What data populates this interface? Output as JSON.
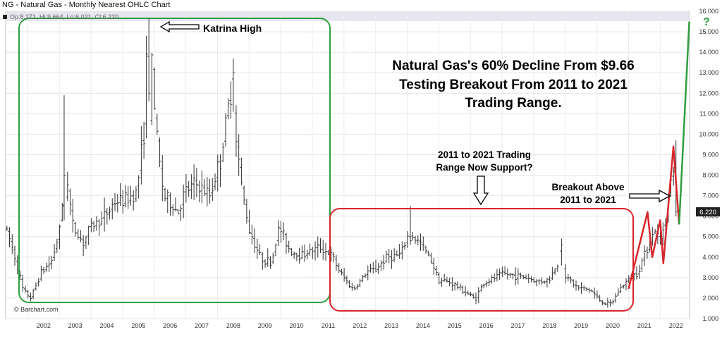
{
  "header": {
    "title": "NG - Natural Gas - Monthly Nearest OHLC Chart",
    "ohlc_readout": "Op:8.271, Hi:9.664, Lo:6.021, Cl:6.220",
    "credit": "© Barchart.com"
  },
  "colors": {
    "bars": "#333333",
    "green_box": "#2e9e3e",
    "red_box": "#d8252b",
    "red_line": "#d8252b",
    "green_line": "#2e9e3e",
    "last_price_bg": "#222222"
  },
  "chart_data": {
    "type": "ohlc",
    "title": "Natural Gas's 60% Decline From $9.66 Testing Breakout From 2011 to 2021 Trading Range.",
    "title_lines": [
      "Natural Gas's 60% Decline From $9.66",
      "Testing Breakout From 2011 to 2021",
      "Trading Range."
    ],
    "x_ticks": [
      "2002",
      "2003",
      "2004",
      "2005",
      "2006",
      "2007",
      "2008",
      "2009",
      "2010",
      "2011",
      "2012",
      "2013",
      "2014",
      "2015",
      "2016",
      "2017",
      "2018",
      "2019",
      "2020",
      "2021",
      "2022"
    ],
    "y_ticks": [
      "1.000",
      "2.000",
      "3.000",
      "4.000",
      "5.000",
      "6.000",
      "7.000",
      "8.000",
      "9.000",
      "10.000",
      "11.000",
      "12.000",
      "13.000",
      "14.000",
      "15.000",
      "16.000"
    ],
    "ylim": [
      1,
      16
    ],
    "xlim": [
      2001.3,
      2022.93
    ],
    "last_price": "6.220",
    "grid": true,
    "annotations": [
      {
        "id": "katrina",
        "text": "Katrina High"
      },
      {
        "id": "support",
        "lines": [
          "2011 to 2021 Trading",
          "Range Now Support?"
        ]
      },
      {
        "id": "breakout",
        "lines": [
          "Breakout Above",
          "2011 to 2021"
        ]
      },
      {
        "id": "question",
        "text": "?"
      }
    ],
    "anchors": [
      [
        2001.3,
        5.5
      ],
      [
        2001.6,
        4.0
      ],
      [
        2001.85,
        2.4
      ],
      [
        2002.1,
        2.0
      ],
      [
        2002.4,
        3.2
      ],
      [
        2002.75,
        3.8
      ],
      [
        2003.05,
        5.5
      ],
      [
        2003.18,
        9.0
      ],
      [
        2003.4,
        5.6
      ],
      [
        2003.75,
        4.7
      ],
      [
        2004.0,
        5.5
      ],
      [
        2004.4,
        5.9
      ],
      [
        2004.75,
        6.7
      ],
      [
        2005.1,
        6.8
      ],
      [
        2005.45,
        7.2
      ],
      [
        2005.7,
        10.5
      ],
      [
        2005.9,
        13.8
      ],
      [
        2006.1,
        9.5
      ],
      [
        2006.3,
        7.0
      ],
      [
        2006.75,
        6.2
      ],
      [
        2006.95,
        7.1
      ],
      [
        2007.3,
        7.6
      ],
      [
        2007.75,
        7.0
      ],
      [
        2008.1,
        8.8
      ],
      [
        2008.45,
        12.3
      ],
      [
        2008.75,
        7.5
      ],
      [
        2009.0,
        5.4
      ],
      [
        2009.35,
        4.0
      ],
      [
        2009.7,
        3.7
      ],
      [
        2009.95,
        5.5
      ],
      [
        2010.3,
        4.3
      ],
      [
        2010.6,
        4.1
      ],
      [
        2010.95,
        4.3
      ],
      [
        2011.25,
        4.5
      ],
      [
        2011.6,
        4.1
      ],
      [
        2011.9,
        3.2
      ],
      [
        2012.3,
        2.4
      ],
      [
        2012.75,
        3.3
      ],
      [
        2013.0,
        3.4
      ],
      [
        2013.35,
        4.0
      ],
      [
        2013.8,
        4.1
      ],
      [
        2014.05,
        5.2
      ],
      [
        2014.4,
        4.7
      ],
      [
        2014.75,
        3.9
      ],
      [
        2015.0,
        2.9
      ],
      [
        2015.4,
        2.75
      ],
      [
        2015.85,
        2.3
      ],
      [
        2016.15,
        1.95
      ],
      [
        2016.4,
        2.7
      ],
      [
        2016.8,
        3.0
      ],
      [
        2017.0,
        3.2
      ],
      [
        2017.4,
        3.1
      ],
      [
        2017.8,
        3.0
      ],
      [
        2018.1,
        2.8
      ],
      [
        2018.5,
        2.9
      ],
      [
        2018.8,
        3.8
      ],
      [
        2019.05,
        3.0
      ],
      [
        2019.4,
        2.5
      ],
      [
        2019.8,
        2.4
      ],
      [
        2020.15,
        1.8
      ],
      [
        2020.45,
        1.7
      ],
      [
        2020.75,
        2.5
      ],
      [
        2021.0,
        2.9
      ],
      [
        2021.3,
        3.3
      ],
      [
        2021.6,
        4.5
      ],
      [
        2021.85,
        5.4
      ],
      [
        2022.0,
        4.6
      ],
      [
        2022.25,
        6.8
      ],
      [
        2022.45,
        8.6
      ],
      [
        2022.62,
        6.6
      ]
    ],
    "special_bars": [
      {
        "date": 2003.15,
        "open": 6.5,
        "high": 11.9,
        "low": 5.8,
        "close": 8.0
      },
      {
        "date": 2005.75,
        "open": 10.5,
        "high": 14.8,
        "low": 9.8,
        "close": 13.9
      },
      {
        "date": 2005.83,
        "open": 13.8,
        "high": 15.7,
        "low": 11.6,
        "close": 12.0
      },
      {
        "date": 2008.5,
        "open": 12.7,
        "high": 13.7,
        "low": 11.1,
        "close": 13.0
      },
      {
        "date": 2014.1,
        "open": 5.0,
        "high": 6.5,
        "low": 4.6,
        "close": 4.8
      },
      {
        "date": 2018.88,
        "open": 4.3,
        "high": 4.9,
        "low": 3.6,
        "close": 4.6
      },
      {
        "date": 2022.5,
        "open": 8.3,
        "high": 9.7,
        "low": 6.0,
        "close": 6.22
      }
    ],
    "red_path": [
      [
        2021.0,
        2.45
      ],
      [
        2021.6,
        6.2
      ],
      [
        2021.75,
        4.0
      ],
      [
        2022.0,
        5.8
      ],
      [
        2022.1,
        3.7
      ],
      [
        2022.42,
        9.4
      ],
      [
        2022.6,
        5.6
      ]
    ],
    "green_path": [
      [
        2022.6,
        5.6
      ],
      [
        2022.92,
        15.5
      ]
    ]
  }
}
